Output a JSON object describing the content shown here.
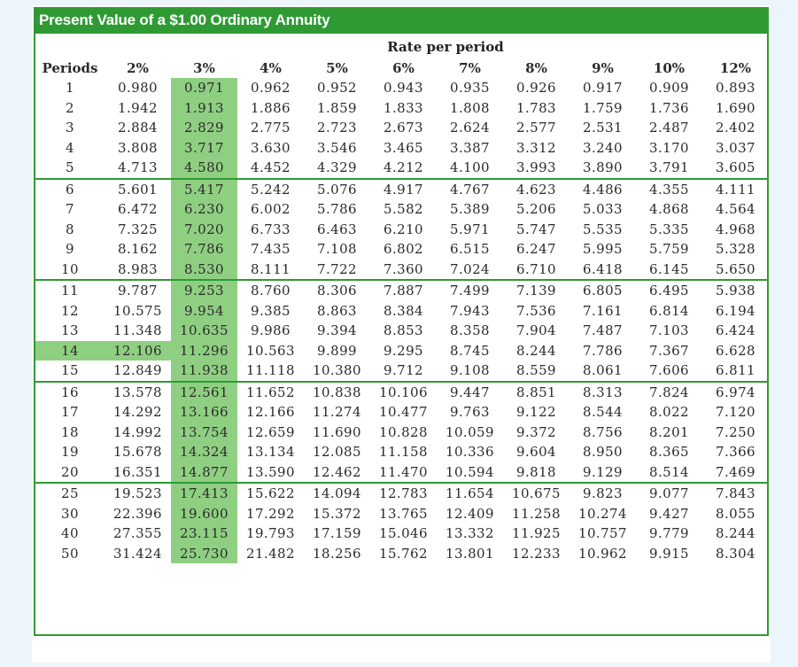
{
  "title": "Present Value of a $1.00 Ordinary Annuity",
  "rate_header": "Rate per period",
  "colors": {
    "title_bar": "#2f9a34",
    "highlight": "#8fcf82",
    "divider": "#2f9a34"
  },
  "highlighted_column": "3%",
  "highlighted_period": "14",
  "columns": [
    "Periods",
    "2%",
    "3%",
    "4%",
    "5%",
    "6%",
    "7%",
    "8%",
    "9%",
    "10%",
    "12%"
  ],
  "rows": [
    [
      "1",
      "0.980",
      "0.971",
      "0.962",
      "0.952",
      "0.943",
      "0.935",
      "0.926",
      "0.917",
      "0.909",
      "0.893"
    ],
    [
      "2",
      "1.942",
      "1.913",
      "1.886",
      "1.859",
      "1.833",
      "1.808",
      "1.783",
      "1.759",
      "1.736",
      "1.690"
    ],
    [
      "3",
      "2.884",
      "2.829",
      "2.775",
      "2.723",
      "2.673",
      "2.624",
      "2.577",
      "2.531",
      "2.487",
      "2.402"
    ],
    [
      "4",
      "3.808",
      "3.717",
      "3.630",
      "3.546",
      "3.465",
      "3.387",
      "3.312",
      "3.240",
      "3.170",
      "3.037"
    ],
    [
      "5",
      "4.713",
      "4.580",
      "4.452",
      "4.329",
      "4.212",
      "4.100",
      "3.993",
      "3.890",
      "3.791",
      "3.605"
    ],
    [
      "6",
      "5.601",
      "5.417",
      "5.242",
      "5.076",
      "4.917",
      "4.767",
      "4.623",
      "4.486",
      "4.355",
      "4.111"
    ],
    [
      "7",
      "6.472",
      "6.230",
      "6.002",
      "5.786",
      "5.582",
      "5.389",
      "5.206",
      "5.033",
      "4.868",
      "4.564"
    ],
    [
      "8",
      "7.325",
      "7.020",
      "6.733",
      "6.463",
      "6.210",
      "5.971",
      "5.747",
      "5.535",
      "5.335",
      "4.968"
    ],
    [
      "9",
      "8.162",
      "7.786",
      "7.435",
      "7.108",
      "6.802",
      "6.515",
      "6.247",
      "5.995",
      "5.759",
      "5.328"
    ],
    [
      "10",
      "8.983",
      "8.530",
      "8.111",
      "7.722",
      "7.360",
      "7.024",
      "6.710",
      "6.418",
      "6.145",
      "5.650"
    ],
    [
      "11",
      "9.787",
      "9.253",
      "8.760",
      "8.306",
      "7.887",
      "7.499",
      "7.139",
      "6.805",
      "6.495",
      "5.938"
    ],
    [
      "12",
      "10.575",
      "9.954",
      "9.385",
      "8.863",
      "8.384",
      "7.943",
      "7.536",
      "7.161",
      "6.814",
      "6.194"
    ],
    [
      "13",
      "11.348",
      "10.635",
      "9.986",
      "9.394",
      "8.853",
      "8.358",
      "7.904",
      "7.487",
      "7.103",
      "6.424"
    ],
    [
      "14",
      "12.106",
      "11.296",
      "10.563",
      "9.899",
      "9.295",
      "8.745",
      "8.244",
      "7.786",
      "7.367",
      "6.628"
    ],
    [
      "15",
      "12.849",
      "11.938",
      "11.118",
      "10.380",
      "9.712",
      "9.108",
      "8.559",
      "8.061",
      "7.606",
      "6.811"
    ],
    [
      "16",
      "13.578",
      "12.561",
      "11.652",
      "10.838",
      "10.106",
      "9.447",
      "8.851",
      "8.313",
      "7.824",
      "6.974"
    ],
    [
      "17",
      "14.292",
      "13.166",
      "12.166",
      "11.274",
      "10.477",
      "9.763",
      "9.122",
      "8.544",
      "8.022",
      "7.120"
    ],
    [
      "18",
      "14.992",
      "13.754",
      "12.659",
      "11.690",
      "10.828",
      "10.059",
      "9.372",
      "8.756",
      "8.201",
      "7.250"
    ],
    [
      "19",
      "15.678",
      "14.324",
      "13.134",
      "12.085",
      "11.158",
      "10.336",
      "9.604",
      "8.950",
      "8.365",
      "7.366"
    ],
    [
      "20",
      "16.351",
      "14.877",
      "13.590",
      "12.462",
      "11.470",
      "10.594",
      "9.818",
      "9.129",
      "8.514",
      "7.469"
    ],
    [
      "25",
      "19.523",
      "17.413",
      "15.622",
      "14.094",
      "12.783",
      "11.654",
      "10.675",
      "9.823",
      "9.077",
      "7.843"
    ],
    [
      "30",
      "22.396",
      "19.600",
      "17.292",
      "15.372",
      "13.765",
      "12.409",
      "11.258",
      "10.274",
      "9.427",
      "8.055"
    ],
    [
      "40",
      "27.355",
      "23.115",
      "19.793",
      "17.159",
      "15.046",
      "13.332",
      "11.925",
      "10.757",
      "9.779",
      "8.244"
    ],
    [
      "50",
      "31.424",
      "25.730",
      "21.482",
      "18.256",
      "15.762",
      "13.801",
      "12.233",
      "10.962",
      "9.915",
      "8.304"
    ]
  ]
}
